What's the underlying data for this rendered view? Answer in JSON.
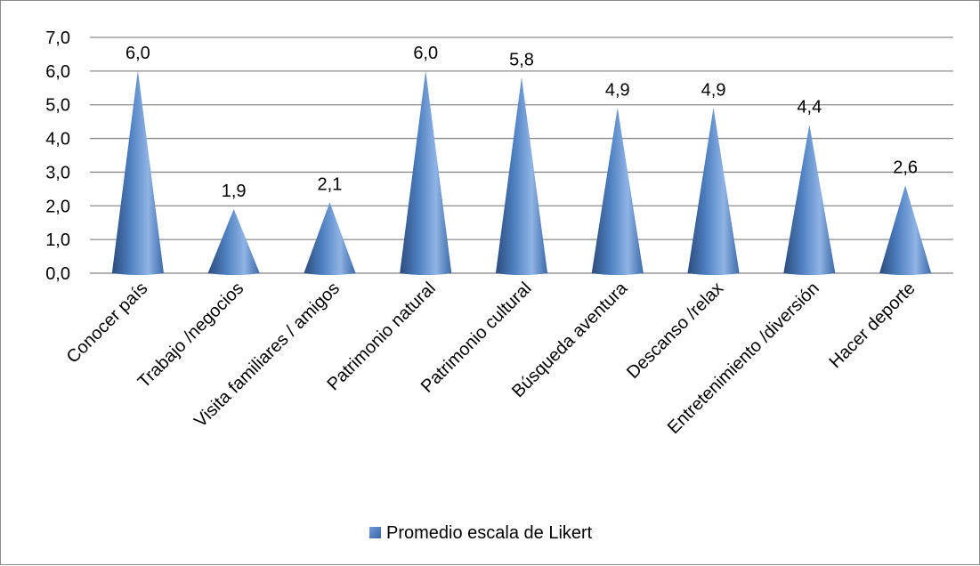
{
  "chart_data": {
    "type": "bar",
    "bar_shape": "cone",
    "categories": [
      "Conocer país",
      "Trabajo /negocios",
      "Visita familiares / amigos",
      "Patrimonio natural",
      "Patrimonio cultural",
      "Búsqueda aventura",
      "Descanso /relax",
      "Entretenimiento /diversión",
      "Hacer deporte"
    ],
    "series": [
      {
        "name": "Promedio escala de Likert",
        "values": [
          6.0,
          1.9,
          2.1,
          6.0,
          5.8,
          4.9,
          4.9,
          4.4,
          2.6
        ],
        "value_labels": [
          "6,0",
          "1,9",
          "2,1",
          "6,0",
          "5,8",
          "4,9",
          "4,9",
          "4,4",
          "2,6"
        ],
        "color": "#4f81bd"
      }
    ],
    "y_ticks": [
      "0,0",
      "1,0",
      "2,0",
      "3,0",
      "4,0",
      "5,0",
      "6,0",
      "7,0"
    ],
    "ylim": [
      0,
      7
    ],
    "grid": true,
    "legend_position": "bottom"
  }
}
